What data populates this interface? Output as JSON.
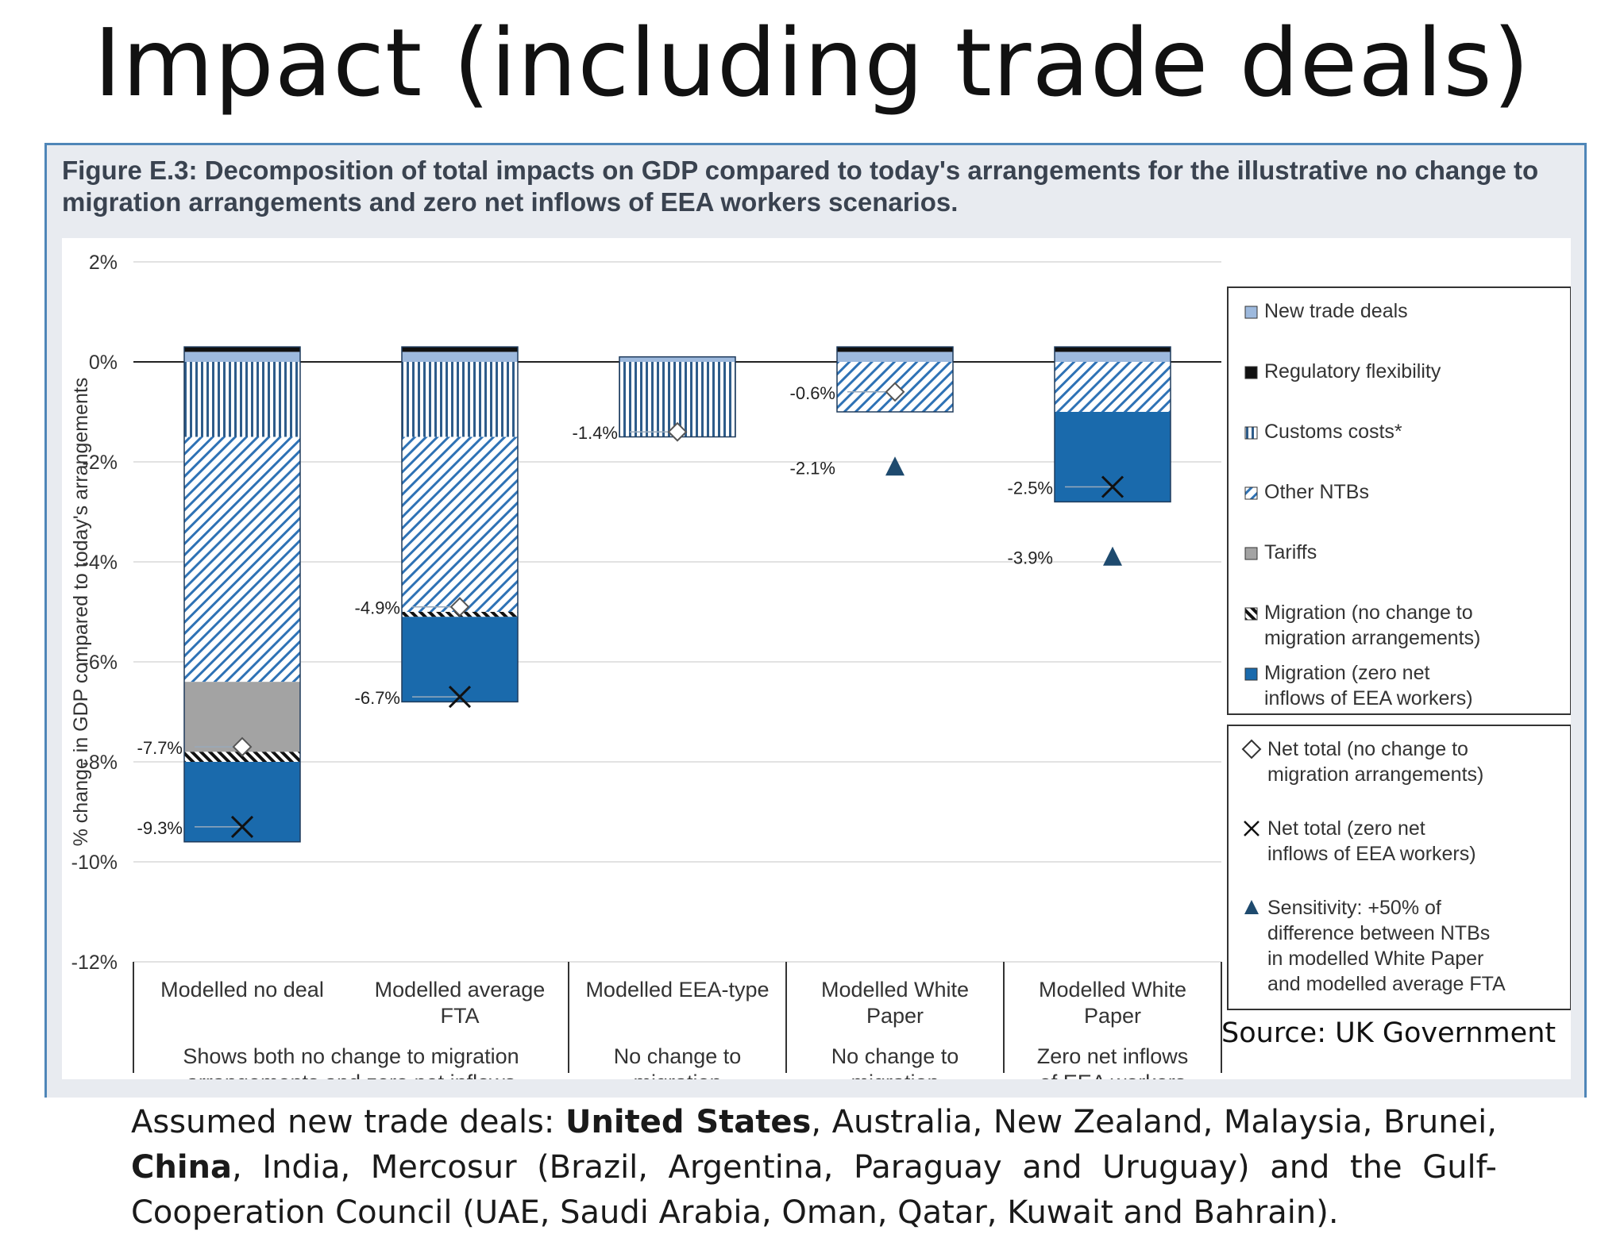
{
  "page": {
    "title": "Impact (including trade deals)",
    "source": "Source: UK Government",
    "note": [
      {
        "text": "Assumed new trade deals: ",
        "bold": false
      },
      {
        "text": "United States",
        "bold": true
      },
      {
        "text": ", Australia, New Zealand, Malaysia, Brunei, ",
        "bold": false
      },
      {
        "text": "China",
        "bold": true
      },
      {
        "text": ", India, Mercosur (Brazil, Argentina, Paraguay and Uruguay) and the Gulf-Cooperation Council (UAE, Saudi Arabia, Oman, Qatar, Kuwait and Bahrain).",
        "bold": false
      }
    ]
  },
  "chart_data": {
    "type": "bar",
    "stacked": true,
    "title": "Figure E.3: Decomposition of total impacts on GDP compared to today's arrangements for the illustrative no change to migration arrangements and zero net inflows of EEA workers scenarios.",
    "ylabel": "% change in GDP compared to today's arrangements",
    "ylim": [
      -12,
      2
    ],
    "yticks": [
      "2%",
      "0%",
      "-2%",
      "-4%",
      "-6%",
      "-8%",
      "-10%",
      "-12%"
    ],
    "grid": true,
    "legend_position": "right",
    "categories": [
      "Modelled no deal",
      "Modelled average FTA",
      "Modelled EEA-type",
      "Modelled White Paper",
      "Modelled White Paper"
    ],
    "category_groups": [
      {
        "label": "Shows both no change to migration arrangements and zero net inflows of EEA workers migration scenarios",
        "span": 2
      },
      {
        "label": "No change to migration arrangements",
        "span": 1
      },
      {
        "label": "No change to migration arrangements",
        "span": 1
      },
      {
        "label": "Zero net inflows of EEA workers",
        "span": 1
      }
    ],
    "series": [
      {
        "name": "New trade deals",
        "color": "#9db9dd",
        "pattern": "solid",
        "values": [
          0.2,
          0.2,
          0.1,
          0.2,
          0.2
        ]
      },
      {
        "name": "Regulatory flexibility",
        "color": "#111111",
        "pattern": "solid",
        "values": [
          0.1,
          0.1,
          0.0,
          0.1,
          0.1
        ]
      },
      {
        "name": "Customs costs*",
        "color": "#2e5c8a",
        "pattern": "vertical",
        "values": [
          -1.5,
          -1.5,
          -1.5,
          0.0,
          0.0
        ]
      },
      {
        "name": "Other NTBs",
        "color": "#2e72b5",
        "pattern": "diagonal",
        "values": [
          -4.9,
          -3.5,
          0.0,
          -1.0,
          -1.0
        ]
      },
      {
        "name": "Tariffs",
        "color": "#a3a3a3",
        "pattern": "solid",
        "values": [
          -1.4,
          0.0,
          0.0,
          0.0,
          0.0
        ]
      },
      {
        "name": "Migration (no change to migration arrangements)",
        "color": "#111111",
        "pattern": "stripe",
        "values": [
          -0.2,
          -0.1,
          0.0,
          0.0,
          0.0
        ]
      },
      {
        "name": "Migration (zero net inflows of EEA workers)",
        "color": "#1a6aac",
        "pattern": "solid",
        "values": [
          -1.6,
          -1.7,
          0.0,
          0.0,
          -1.8
        ]
      }
    ],
    "markers": [
      {
        "name": "Net total (no change to migration arrangements)",
        "symbol": "diamond",
        "values": [
          -7.7,
          -4.9,
          -1.4,
          -0.6,
          null
        ],
        "labels": [
          "-7.7%",
          "-4.9%",
          "-1.4%",
          "-0.6%",
          ""
        ]
      },
      {
        "name": "Net total (zero net inflows of EEA workers)",
        "symbol": "cross",
        "values": [
          -9.3,
          -6.7,
          null,
          null,
          -2.5
        ],
        "labels": [
          "-9.3%",
          "-6.7%",
          "",
          "",
          "-2.5%"
        ]
      },
      {
        "name": "Sensitivity: +50% of difference between NTBs in modelled White Paper and modelled average FTA",
        "symbol": "triangle",
        "values": [
          null,
          null,
          null,
          -2.1,
          -3.9
        ],
        "labels": [
          "",
          "",
          "",
          "-2.1%",
          "-3.9%"
        ]
      }
    ]
  }
}
